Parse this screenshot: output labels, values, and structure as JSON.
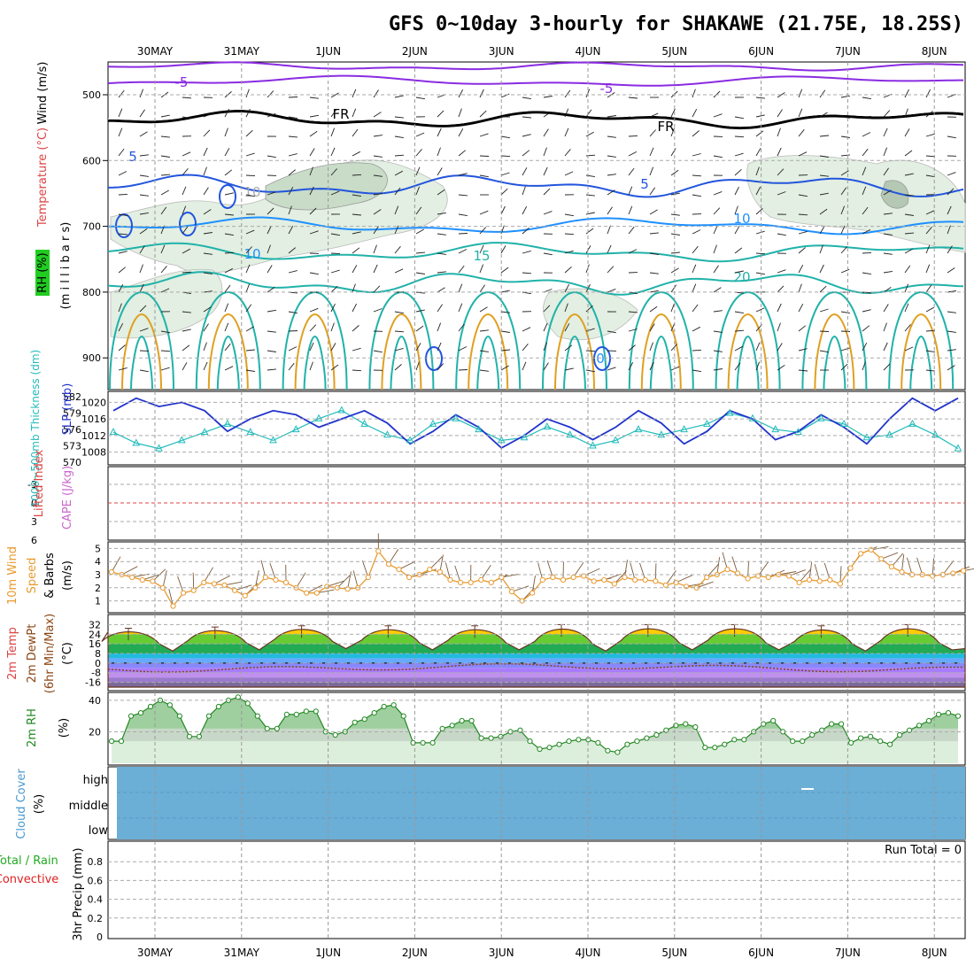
{
  "title": "GFS 0~10day 3-hourly for SHAKAWE (21.75E, 18.25S)",
  "dates": [
    "30MAY",
    "31MAY",
    "1JUN",
    "2JUN",
    "3JUN",
    "4JUN",
    "5JUN",
    "6JUN",
    "7JUN",
    "8JUN"
  ],
  "upper_panel": {
    "ylabel": "(m i l l i b a r s)",
    "label_wind": "Wind (m/s)",
    "label_temp": "Temperature (°C)",
    "label_rh": "RH (%)",
    "y_ticks": [
      "500",
      "600",
      "700",
      "800",
      "900"
    ],
    "contour_labels": [
      "-5",
      "-5",
      "FR",
      "FR",
      "5",
      "5",
      "10",
      "10",
      "15",
      "20",
      "10",
      "0"
    ]
  },
  "slp_panel": {
    "label_thick": "1000~500mb Thickness (dm)",
    "label_slp": "SLP (mb)",
    "thick_ticks": [
      "582",
      "579",
      "576",
      "573",
      "570"
    ],
    "slp_ticks": [
      "1020",
      "1016",
      "1012",
      "1008"
    ]
  },
  "li_panel": {
    "label_li": "Lifted Index",
    "label_cape": "CAPE (J/kg)",
    "y_ticks": [
      "-3",
      "0",
      "3",
      "6"
    ]
  },
  "wind_panel": {
    "label1": "10m Wind",
    "label2": "Speed",
    "label3": "& Barbs",
    "units": "(m/s)",
    "y_ticks": [
      "5",
      "4",
      "3",
      "2",
      "1"
    ]
  },
  "temp_panel": {
    "label1": "2m Temp",
    "label2": "2m DewPt",
    "label3": "(6hr Min/Max)",
    "units": "(°C)",
    "y_ticks": [
      "32",
      "24",
      "16",
      "8",
      "0",
      "-8",
      "-16"
    ]
  },
  "rh_panel": {
    "label": "2m RH",
    "units": "(%)",
    "y_ticks": [
      "40",
      "20"
    ]
  },
  "cloud_panel": {
    "label": "Cloud Cover",
    "units": "(%)",
    "levels": [
      "high",
      "middle",
      "low"
    ]
  },
  "precip_panel": {
    "label1": "Total / Rain",
    "label2": "Convective",
    "label3": "3hr Precip (mm)",
    "y_ticks": [
      "0.8",
      "0.6",
      "0.4",
      "0.2",
      "0"
    ],
    "run_total": "Run Total = 0"
  },
  "colors": {
    "slp": "#2233cc",
    "thickness": "#22bbbb",
    "wind_speed": "#e89a30",
    "rh_line": "#228822",
    "rh_fill": "#c8e6c8",
    "cloud": "#6baed6",
    "temp_contour": "#e0a020",
    "title_temp": "#dd4444",
    "title_wind": "#6a5acd",
    "rh_box": "#22cc22"
  },
  "chart_data": [
    {
      "type": "line",
      "title": "SLP (mb)",
      "x": [
        "30MAY 00",
        "30MAY 06",
        "30MAY 12",
        "30MAY 18",
        "31MAY 00",
        "31MAY 06",
        "31MAY 12",
        "31MAY 18",
        "1JUN 00",
        "1JUN 06",
        "1JUN 12",
        "1JUN 18",
        "2JUN 00",
        "2JUN 06",
        "2JUN 12",
        "2JUN 18",
        "3JUN 00",
        "3JUN 06",
        "3JUN 12",
        "3JUN 18",
        "4JUN 00",
        "4JUN 06",
        "4JUN 12",
        "4JUN 18",
        "5JUN 00",
        "5JUN 06",
        "5JUN 12",
        "5JUN 18",
        "6JUN 00",
        "6JUN 06",
        "6JUN 12",
        "6JUN 18",
        "7JUN 00",
        "7JUN 06",
        "7JUN 12",
        "7JUN 18",
        "8JUN 00",
        "8JUN 06"
      ],
      "series": [
        {
          "name": "SLP",
          "values": [
            1018,
            1021,
            1019,
            1020,
            1018,
            1013,
            1016,
            1018,
            1017,
            1014,
            1016,
            1018,
            1015,
            1010,
            1013,
            1017,
            1014,
            1009,
            1012,
            1016,
            1014,
            1011,
            1014,
            1018,
            1015,
            1010,
            1013,
            1018,
            1016,
            1011,
            1013,
            1017,
            1014,
            1010,
            1016,
            1021,
            1018,
            1021
          ]
        },
        {
          "name": "1000~500mb Thickness",
          "values": [
            575.5,
            573.5,
            572.5,
            574,
            575.5,
            577,
            575.5,
            574,
            576,
            578,
            579.5,
            577,
            575,
            574,
            577,
            578,
            576,
            574,
            574.5,
            576.5,
            575,
            573,
            574,
            576,
            575,
            576,
            577,
            579,
            578,
            576,
            575.5,
            578,
            577,
            574.5,
            575,
            577,
            575,
            572.5
          ]
        }
      ],
      "ylim": [
        1006,
        1022
      ]
    },
    {
      "type": "line",
      "title": "10m Wind Speed & Barbs (m/s)",
      "series": [
        {
          "name": "10m Wind Speed",
          "values": [
            3.2,
            3,
            2.8,
            2.6,
            2.5,
            2,
            0.6,
            1.6,
            1.8,
            2.4,
            2.3,
            2.2,
            1.8,
            1.4,
            2,
            2.8,
            2.6,
            2.4,
            2,
            1.6,
            1.6,
            2.1,
            2,
            1.9,
            2,
            2.8,
            4.8,
            3.8,
            3.4,
            2.8,
            3,
            3.4,
            3.2,
            2.6,
            2.4,
            2.4,
            2.6,
            2.4,
            2.8,
            1.7,
            1,
            1.6,
            2.6,
            2.8,
            2.6,
            2.8,
            2.9,
            2.5,
            2.6,
            2.3,
            2.8,
            2.6,
            2.6,
            2.5,
            2.2,
            2.4,
            2.1,
            2,
            2.8,
            3,
            3.4,
            3.1,
            2.7,
            2.9,
            2.8,
            3,
            2.9,
            2.4,
            2.6,
            2.5,
            2.6,
            2.3,
            3.5,
            4.6,
            4.9,
            4.2,
            3.6,
            3.2,
            3,
            3,
            2.9,
            3,
            3.1,
            3.3
          ]
        }
      ],
      "ylim": [
        0.5,
        5.5
      ]
    },
    {
      "type": "area",
      "title": "2m Temp / 2m DewPt (°C)",
      "series": [
        {
          "name": "2m Temp Max",
          "values": [
            29,
            30,
            31,
            31,
            31,
            32,
            32,
            32,
            31,
            32
          ]
        },
        {
          "name": "2m Temp Min",
          "values": [
            10,
            11,
            12,
            11,
            11,
            10,
            11,
            11,
            10,
            11
          ]
        },
        {
          "name": "2m DewPt",
          "values": [
            -2,
            -2,
            -1,
            -2,
            -4,
            -5,
            -3,
            -3,
            -5,
            -4
          ]
        }
      ],
      "ylim": [
        -20,
        36
      ]
    },
    {
      "type": "area",
      "title": "2m RH (%)",
      "series": [
        {
          "name": "2m RH",
          "values": [
            14,
            14,
            30,
            32,
            36,
            40,
            37,
            30,
            17,
            17,
            30,
            36,
            40,
            42,
            38,
            30,
            22,
            22,
            31,
            31,
            33,
            33,
            20,
            18,
            20,
            26,
            28,
            32,
            36,
            37,
            30,
            13,
            13,
            13,
            22,
            24,
            27,
            27,
            16,
            16,
            17,
            20,
            21,
            14,
            9,
            10,
            12,
            14,
            15,
            15,
            13,
            8,
            7,
            12,
            14,
            16,
            18,
            21,
            24,
            25,
            23,
            10,
            10,
            12,
            15,
            15,
            20,
            25,
            27,
            20,
            14,
            14,
            18,
            21,
            25,
            25,
            13,
            16,
            17,
            14,
            12,
            18,
            21,
            24,
            27,
            31,
            32,
            30
          ]
        }
      ],
      "ylim": [
        0,
        45
      ]
    },
    {
      "type": "bar",
      "title": "3hr Precip (mm)",
      "series": [
        {
          "name": "Total / Rain",
          "values": []
        }
      ],
      "ylim": [
        0,
        1
      ]
    }
  ]
}
